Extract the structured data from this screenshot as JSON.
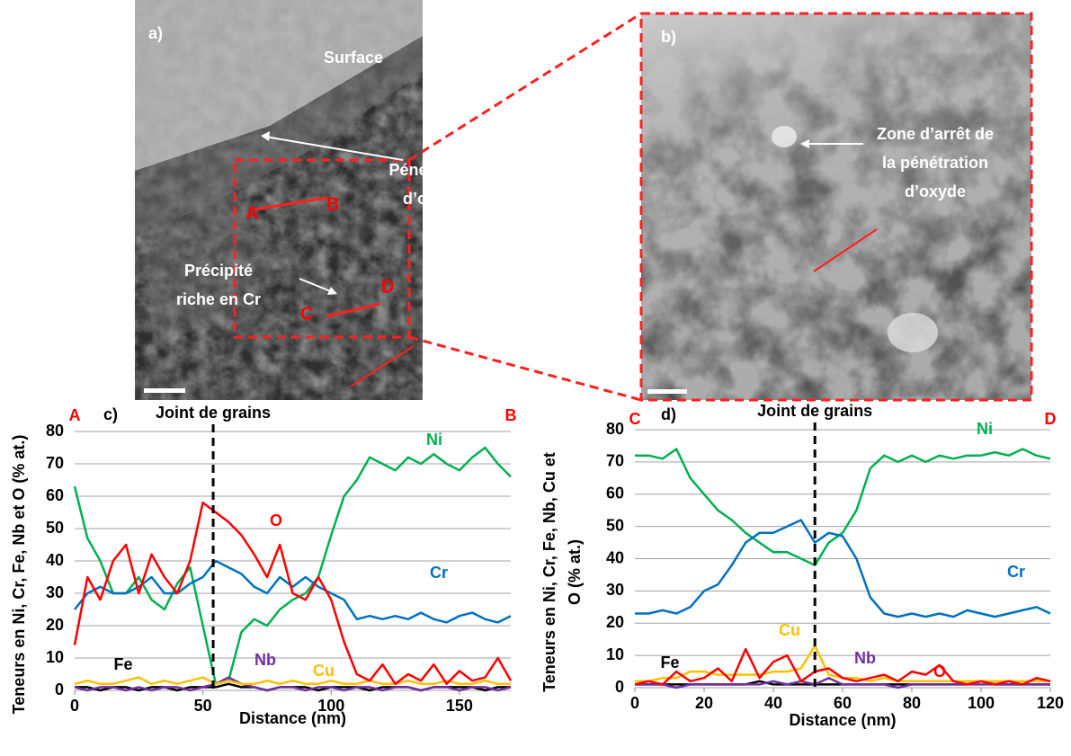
{
  "figure": {
    "panel_a": {
      "label": "a)",
      "surface": "Surface",
      "penetration": [
        "Pénétration",
        "d’oxyde"
      ],
      "precipitate": [
        "Précipité",
        "riche en Cr"
      ],
      "A": "A",
      "B": "B",
      "C": "C",
      "D": "D"
    },
    "panel_b": {
      "label": "b)",
      "zone": [
        "Zone d’arrêt de",
        "la pénétration",
        "d’oxyde"
      ]
    }
  },
  "chart_data": [
    {
      "type": "line",
      "panel_label": "c)",
      "start_label": "A",
      "end_label": "B",
      "annotation": "Joint de grains",
      "boundary_x": 54,
      "xlabel": "Distance (nm)",
      "ylabel": [
        "Teneurs en Ni, Cr, Fe, Nb et O (% at.)"
      ],
      "xlim": [
        0,
        170
      ],
      "xticks": [
        0,
        50,
        100,
        150
      ],
      "ylim": [
        0,
        80
      ],
      "yticks": [
        0,
        10,
        20,
        30,
        40,
        50,
        60,
        70,
        80
      ],
      "grid": true,
      "x": [
        0,
        5,
        10,
        15,
        20,
        25,
        30,
        35,
        40,
        45,
        50,
        55,
        60,
        65,
        70,
        75,
        80,
        85,
        90,
        95,
        100,
        105,
        110,
        115,
        120,
        125,
        130,
        135,
        140,
        145,
        150,
        155,
        160,
        165,
        170
      ],
      "series": [
        {
          "name": "Ni",
          "color": "#00b050",
          "values": [
            63,
            47,
            40,
            30,
            30,
            35,
            28,
            25,
            33,
            38,
            20,
            2,
            3,
            18,
            22,
            20,
            25,
            28,
            30,
            35,
            48,
            60,
            65,
            72,
            70,
            68,
            72,
            70,
            73,
            70,
            68,
            72,
            75,
            70,
            66
          ]
        },
        {
          "name": "Cr",
          "color": "#0070c0",
          "values": [
            25,
            30,
            32,
            30,
            30,
            32,
            35,
            30,
            30,
            33,
            35,
            40,
            38,
            36,
            32,
            30,
            35,
            32,
            35,
            32,
            30,
            28,
            22,
            23,
            22,
            23,
            22,
            24,
            22,
            21,
            23,
            24,
            22,
            21,
            23
          ]
        },
        {
          "name": "Fe",
          "color": "#000000",
          "values": [
            1,
            1,
            0,
            1,
            1,
            0,
            1,
            1,
            0,
            1,
            1,
            1,
            2,
            1,
            1,
            0,
            1,
            1,
            1,
            0,
            1,
            1,
            1,
            0,
            1,
            1,
            1,
            0,
            1,
            1,
            1,
            1,
            0,
            1,
            1
          ]
        },
        {
          "name": "Nb",
          "color": "#7030a0",
          "values": [
            1,
            0,
            1,
            1,
            0,
            1,
            0,
            1,
            1,
            0,
            1,
            2,
            4,
            2,
            1,
            0,
            1,
            1,
            0,
            1,
            1,
            0,
            1,
            1,
            0,
            1,
            1,
            0,
            1,
            1,
            0,
            1,
            1,
            0,
            1
          ]
        },
        {
          "name": "Cu",
          "color": "#ffc000",
          "values": [
            2,
            3,
            2,
            2,
            3,
            4,
            2,
            3,
            2,
            3,
            4,
            2,
            3,
            2,
            2,
            3,
            2,
            3,
            2,
            2,
            3,
            2,
            2,
            3,
            2,
            2,
            3,
            2,
            2,
            3,
            2,
            2,
            3,
            2,
            2
          ]
        },
        {
          "name": "O",
          "color": "#ff0000",
          "values": [
            14,
            35,
            28,
            40,
            45,
            30,
            42,
            35,
            30,
            40,
            58,
            55,
            52,
            48,
            42,
            35,
            45,
            30,
            28,
            35,
            28,
            15,
            5,
            3,
            8,
            2,
            5,
            3,
            8,
            2,
            6,
            3,
            4,
            10,
            3
          ]
        }
      ]
    },
    {
      "type": "line",
      "panel_label": "d)",
      "start_label": "C",
      "end_label": "D",
      "annotation": "Joint de grains",
      "boundary_x": 52,
      "xlabel": "Distance (nm)",
      "ylabel": [
        "Teneurs en Ni, Cr, Fe, Nb, Cu et",
        "O (% at.)"
      ],
      "xlim": [
        0,
        120
      ],
      "xticks": [
        0,
        20,
        40,
        60,
        80,
        100,
        120
      ],
      "ylim": [
        0,
        80
      ],
      "yticks": [
        0,
        10,
        20,
        30,
        40,
        50,
        60,
        70,
        80
      ],
      "grid": true,
      "x": [
        0,
        4,
        8,
        12,
        16,
        20,
        24,
        28,
        32,
        36,
        40,
        44,
        48,
        52,
        56,
        60,
        64,
        68,
        72,
        76,
        80,
        84,
        88,
        92,
        96,
        100,
        104,
        108,
        112,
        116,
        120
      ],
      "series": [
        {
          "name": "Ni",
          "color": "#00b050",
          "values": [
            72,
            72,
            71,
            74,
            65,
            60,
            55,
            52,
            48,
            45,
            42,
            42,
            40,
            38,
            45,
            48,
            55,
            68,
            72,
            70,
            72,
            70,
            72,
            71,
            72,
            72,
            73,
            72,
            74,
            72,
            71
          ]
        },
        {
          "name": "Cr",
          "color": "#0070c0",
          "values": [
            23,
            23,
            24,
            23,
            25,
            30,
            32,
            38,
            45,
            48,
            48,
            50,
            52,
            45,
            48,
            47,
            40,
            28,
            23,
            22,
            23,
            22,
            23,
            22,
            24,
            23,
            22,
            23,
            24,
            25,
            23
          ]
        },
        {
          "name": "Fe",
          "color": "#000000",
          "values": [
            1,
            1,
            1,
            1,
            1,
            1,
            1,
            1,
            1,
            2,
            1,
            1,
            1,
            1,
            1,
            1,
            1,
            1,
            1,
            1,
            1,
            1,
            1,
            1,
            1,
            2,
            1,
            1,
            1,
            1,
            1
          ]
        },
        {
          "name": "Nb",
          "color": "#7030a0",
          "values": [
            1,
            1,
            1,
            0,
            1,
            1,
            1,
            1,
            1,
            1,
            2,
            1,
            2,
            1,
            3,
            1,
            1,
            1,
            1,
            0,
            1,
            1,
            1,
            1,
            1,
            1,
            1,
            1,
            1,
            1,
            1
          ]
        },
        {
          "name": "Cu",
          "color": "#ffc000",
          "values": [
            2,
            2,
            3,
            3,
            5,
            5,
            4,
            4,
            4,
            4,
            5,
            5,
            6,
            13,
            4,
            3,
            3,
            2,
            3,
            2,
            2,
            2,
            2,
            2,
            2,
            2,
            2,
            2,
            2,
            2,
            2
          ]
        },
        {
          "name": "O",
          "color": "#ff0000",
          "values": [
            1,
            2,
            1,
            5,
            2,
            3,
            6,
            2,
            12,
            3,
            8,
            10,
            2,
            5,
            6,
            3,
            2,
            3,
            4,
            2,
            5,
            4,
            7,
            2,
            1,
            2,
            1,
            2,
            1,
            3,
            2
          ]
        }
      ]
    }
  ]
}
